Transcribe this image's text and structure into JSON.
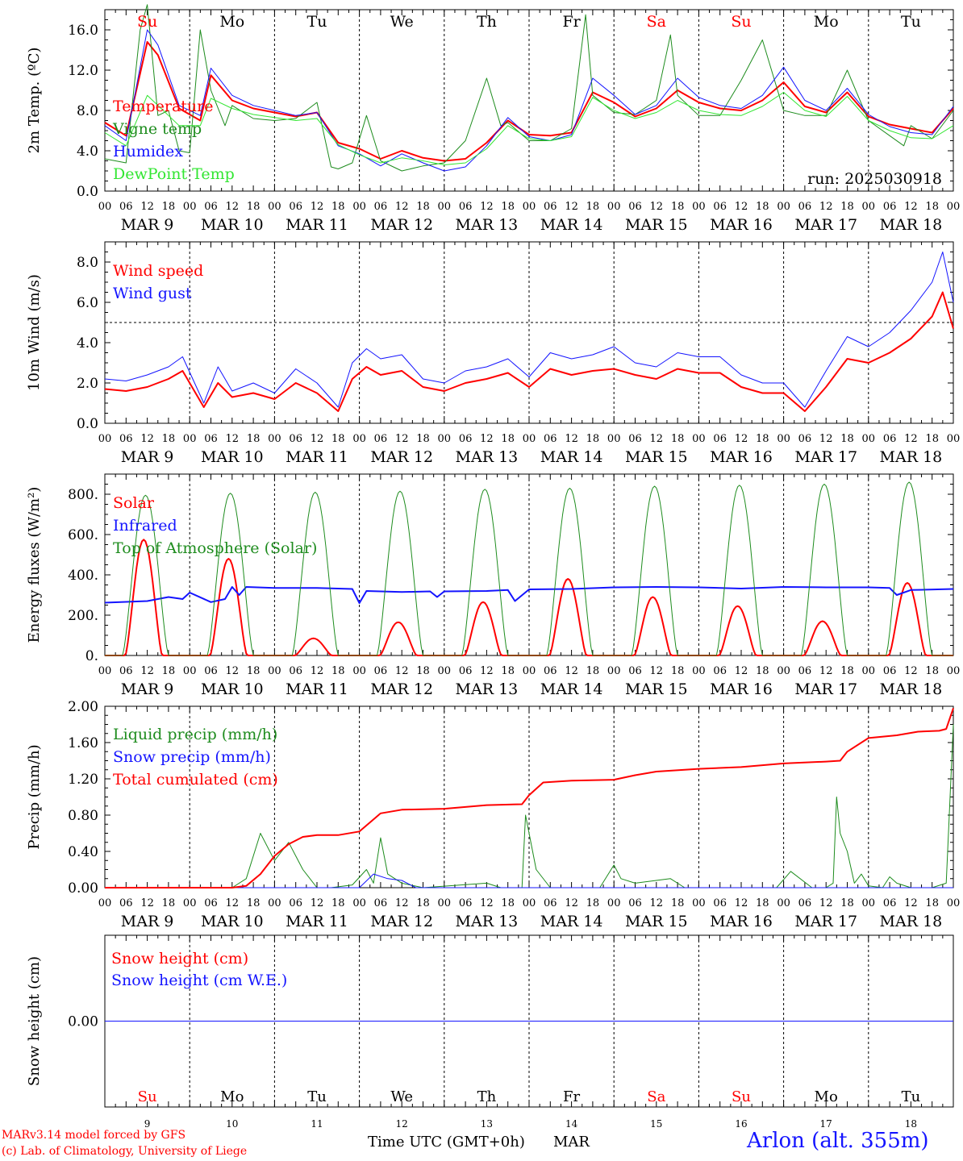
{
  "colors": {
    "red": "#ff0000",
    "dkgreen": "#1e8c1e",
    "blue": "#1414ff",
    "ltgreen": "#32e632",
    "axis": "#000000"
  },
  "days": {
    "names": [
      "Su",
      "Mo",
      "Tu",
      "We",
      "Th",
      "Fr",
      "Sa",
      "Su",
      "Mo",
      "Tu"
    ],
    "name_colors": [
      "#ff0000",
      "#000000",
      "#000000",
      "#000000",
      "#000000",
      "#000000",
      "#ff0000",
      "#ff0000",
      "#000000",
      "#000000"
    ],
    "dates": [
      "MAR  9",
      "MAR 10",
      "MAR 11",
      "MAR 12",
      "MAR 13",
      "MAR 14",
      "MAR 15",
      "MAR 16",
      "MAR 17",
      "MAR 18"
    ],
    "numbers": [
      "9",
      "10",
      "11",
      "12",
      "13",
      "14",
      "15",
      "16",
      "17",
      "18"
    ],
    "hour_ticks": [
      "00",
      "06",
      "12",
      "18"
    ],
    "last_tick": "00"
  },
  "footer": {
    "credit1": "MARv3.14 model forced by GFS",
    "credit2": "(c) Lab. of Climatology, University of Liege",
    "xlabel": "Time UTC (GMT+0h)",
    "month": "MAR",
    "station": "Arlon (alt. 355m)"
  },
  "chart_data": [
    {
      "type": "line",
      "ylabel": "2m Temp. (ºC)",
      "ylim": [
        0,
        18
      ],
      "yticks": [
        "0.0",
        "4.0",
        "8.0",
        "12.0",
        "16.0"
      ],
      "annotation": "run: 2025030918",
      "x_unit": "hours since MAR 9 00 UTC",
      "series": [
        {
          "name": "Temperature",
          "color": "#ff0000",
          "width": 2,
          "x": [
            0,
            6,
            12,
            15,
            21,
            27,
            30,
            36,
            42,
            48,
            54,
            60,
            66,
            72,
            78,
            84,
            90,
            96,
            102,
            108,
            114,
            120,
            126,
            132,
            138,
            144,
            150,
            156,
            162,
            168,
            174,
            180,
            186,
            192,
            198,
            204,
            210,
            216,
            222,
            228,
            234,
            240
          ],
          "values": [
            6.8,
            5.5,
            14.8,
            13.5,
            8.2,
            7.0,
            11.5,
            9.0,
            8.2,
            7.8,
            7.4,
            7.8,
            4.8,
            4.2,
            3.2,
            4.0,
            3.3,
            3.0,
            3.2,
            4.8,
            7.0,
            5.6,
            5.5,
            5.8,
            9.8,
            8.8,
            7.4,
            8.2,
            10.0,
            8.8,
            8.2,
            8.0,
            9.0,
            10.8,
            8.4,
            7.8,
            9.8,
            7.4,
            6.6,
            6.2,
            5.8,
            8.2
          ]
        },
        {
          "name": "Vigne temp",
          "color": "#1e8c1e",
          "width": 1,
          "x": [
            0,
            6,
            10,
            12,
            15,
            18,
            21,
            24,
            27,
            30,
            34,
            36,
            42,
            48,
            54,
            60,
            64,
            66,
            70,
            74,
            78,
            84,
            90,
            96,
            102,
            108,
            112,
            114,
            120,
            126,
            132,
            136,
            138,
            144,
            150,
            156,
            160,
            162,
            168,
            174,
            180,
            186,
            192,
            198,
            204,
            210,
            216,
            222,
            226,
            228,
            234,
            240
          ],
          "values": [
            3.2,
            2.8,
            16.0,
            18.5,
            7.5,
            8.0,
            4.0,
            3.8,
            16.0,
            10.0,
            6.5,
            8.5,
            7.2,
            7.0,
            7.2,
            8.8,
            2.4,
            2.2,
            2.8,
            7.5,
            3.0,
            2.0,
            2.5,
            2.8,
            5.0,
            11.2,
            6.5,
            6.8,
            5.0,
            5.0,
            6.2,
            17.5,
            9.5,
            7.8,
            7.6,
            9.0,
            15.5,
            9.5,
            7.5,
            7.5,
            11.0,
            15.0,
            8.0,
            7.5,
            7.5,
            12.0,
            7.0,
            5.5,
            4.5,
            6.5,
            5.2,
            8.0
          ]
        },
        {
          "name": "Humidex",
          "color": "#1414ff",
          "width": 1,
          "x": [
            0,
            6,
            12,
            15,
            21,
            27,
            30,
            36,
            42,
            48,
            54,
            60,
            66,
            72,
            78,
            84,
            90,
            96,
            102,
            108,
            114,
            120,
            126,
            132,
            138,
            144,
            150,
            156,
            162,
            168,
            174,
            180,
            186,
            192,
            198,
            204,
            210,
            216,
            222,
            228,
            234,
            240
          ],
          "values": [
            6.5,
            5.0,
            16.0,
            14.5,
            8.5,
            7.5,
            12.2,
            9.5,
            8.5,
            8.0,
            7.5,
            7.8,
            4.5,
            3.7,
            2.5,
            3.7,
            2.8,
            2.0,
            2.4,
            4.5,
            7.3,
            5.4,
            5.0,
            5.6,
            11.2,
            9.5,
            7.6,
            8.5,
            11.2,
            9.3,
            8.5,
            8.2,
            9.5,
            12.3,
            9.0,
            8.0,
            10.2,
            7.6,
            6.4,
            5.8,
            5.6,
            8.4
          ]
        },
        {
          "name": "DewPoint Temp",
          "color": "#32e632",
          "width": 1,
          "x": [
            0,
            6,
            12,
            15,
            21,
            27,
            30,
            36,
            42,
            48,
            54,
            60,
            66,
            72,
            78,
            84,
            90,
            96,
            102,
            108,
            114,
            120,
            126,
            132,
            138,
            144,
            150,
            156,
            162,
            168,
            174,
            180,
            186,
            192,
            198,
            204,
            210,
            216,
            222,
            228,
            234,
            240
          ],
          "values": [
            5.8,
            4.5,
            9.5,
            8.5,
            6.5,
            6.5,
            9.2,
            8.2,
            7.6,
            7.3,
            7.0,
            7.2,
            4.6,
            3.6,
            2.8,
            3.3,
            3.0,
            2.6,
            2.8,
            4.2,
            6.5,
            5.2,
            5.0,
            5.4,
            9.3,
            8.0,
            7.2,
            7.8,
            9.0,
            8.0,
            7.6,
            7.5,
            8.4,
            9.8,
            8.0,
            7.4,
            9.4,
            7.0,
            6.0,
            5.3,
            5.2,
            6.5
          ]
        }
      ]
    },
    {
      "type": "line",
      "ylabel": "10m Wind (m/s)",
      "ylim": [
        0,
        9
      ],
      "yticks": [
        "0.0",
        "2.0",
        "4.0",
        "6.0",
        "8.0"
      ],
      "ref_line": 5,
      "x_unit": "hours since MAR 9 00 UTC",
      "series": [
        {
          "name": "Wind speed",
          "color": "#ff0000",
          "width": 2,
          "x": [
            0,
            6,
            12,
            18,
            22,
            28,
            32,
            36,
            42,
            48,
            54,
            60,
            66,
            70,
            74,
            78,
            84,
            90,
            96,
            102,
            108,
            114,
            120,
            126,
            132,
            138,
            144,
            150,
            156,
            162,
            168,
            174,
            180,
            186,
            192,
            198,
            204,
            210,
            216,
            222,
            228,
            234,
            237,
            240
          ],
          "values": [
            1.7,
            1.6,
            1.8,
            2.2,
            2.6,
            0.8,
            2.0,
            1.3,
            1.5,
            1.2,
            2.0,
            1.5,
            0.6,
            2.2,
            2.8,
            2.4,
            2.6,
            1.8,
            1.6,
            2.0,
            2.2,
            2.5,
            1.8,
            2.7,
            2.4,
            2.6,
            2.7,
            2.4,
            2.2,
            2.7,
            2.5,
            2.5,
            1.8,
            1.5,
            1.5,
            0.6,
            1.8,
            3.2,
            3.0,
            3.5,
            4.2,
            5.3,
            6.5,
            4.7
          ]
        },
        {
          "name": "Wind gust",
          "color": "#1414ff",
          "width": 1,
          "x": [
            0,
            6,
            12,
            18,
            22,
            28,
            32,
            36,
            42,
            48,
            54,
            60,
            66,
            70,
            74,
            78,
            84,
            90,
            96,
            102,
            108,
            114,
            120,
            126,
            132,
            138,
            144,
            150,
            156,
            162,
            168,
            174,
            180,
            186,
            192,
            198,
            204,
            210,
            216,
            222,
            228,
            234,
            237,
            240
          ],
          "values": [
            2.2,
            2.1,
            2.4,
            2.8,
            3.3,
            1.0,
            2.8,
            1.6,
            2.0,
            1.5,
            2.7,
            2.0,
            0.8,
            3.0,
            3.7,
            3.2,
            3.4,
            2.2,
            2.0,
            2.6,
            2.8,
            3.2,
            2.3,
            3.5,
            3.2,
            3.4,
            3.8,
            3.0,
            2.8,
            3.5,
            3.3,
            3.3,
            2.4,
            2.0,
            2.0,
            0.8,
            2.6,
            4.3,
            3.8,
            4.5,
            5.6,
            7.0,
            8.5,
            6.0
          ]
        }
      ]
    },
    {
      "type": "line",
      "ylabel": "Energy fluxes (W/m²)",
      "ylim": [
        0,
        900
      ],
      "yticks": [
        "0.",
        "200.",
        "400.",
        "600.",
        "800."
      ],
      "x_unit": "hours since MAR 9 00 UTC",
      "series": [
        {
          "name": "Solar",
          "color": "#ff0000",
          "width": 2,
          "peaks_hour": [
            11,
            35,
            59,
            83,
            107,
            131,
            155,
            179,
            203,
            227
          ],
          "peaks": [
            575,
            480,
            85,
            165,
            265,
            380,
            290,
            245,
            170,
            360
          ]
        },
        {
          "name": "Infrared",
          "color": "#1414ff",
          "width": 2,
          "x": [
            0,
            12,
            18,
            22,
            24,
            30,
            34,
            36,
            38,
            40,
            48,
            60,
            70,
            72,
            74,
            84,
            92,
            94,
            96,
            108,
            114,
            116,
            120,
            132,
            144,
            156,
            168,
            180,
            192,
            204,
            216,
            222,
            224,
            228,
            240
          ],
          "values": [
            262,
            270,
            290,
            280,
            312,
            265,
            280,
            340,
            300,
            340,
            335,
            335,
            330,
            260,
            320,
            315,
            318,
            290,
            318,
            320,
            325,
            270,
            328,
            330,
            338,
            340,
            338,
            332,
            340,
            338,
            338,
            335,
            300,
            325,
            330
          ]
        },
        {
          "name": "Top of Atmosphere (Solar)",
          "color": "#1e8c1e",
          "width": 1,
          "peaks_hour": [
            11.5,
            35.5,
            59.5,
            83.5,
            107.5,
            131.5,
            155.5,
            179.5,
            203.5,
            227.5
          ],
          "peaks": [
            795,
            805,
            810,
            815,
            825,
            830,
            840,
            845,
            850,
            860
          ]
        }
      ]
    },
    {
      "type": "line",
      "ylabel": "Precip (mm/h)",
      "ylim": [
        0,
        2
      ],
      "yticks": [
        "0.00",
        "0.40",
        "0.80",
        "1.20",
        "1.60",
        "2.00"
      ],
      "x_unit": "hours since MAR 9 00 UTC",
      "series": [
        {
          "name": "Liquid precip (mm/h)",
          "color": "#1e8c1e",
          "width": 1,
          "x": [
            0,
            36,
            40,
            44,
            48,
            52,
            54,
            56,
            60,
            64,
            70,
            74,
            76,
            78,
            80,
            84,
            90,
            108,
            112,
            118,
            119,
            120,
            122,
            126,
            140,
            144,
            146,
            150,
            160,
            164,
            168,
            190,
            194,
            200,
            204,
            206,
            207,
            208,
            210,
            212,
            214,
            216,
            220,
            222,
            224,
            228,
            234,
            238,
            240
          ],
          "values": [
            0,
            0,
            0.1,
            0.6,
            0.3,
            0.5,
            0.35,
            0.2,
            0,
            0,
            0.03,
            0.2,
            0.05,
            0.55,
            0.15,
            0.05,
            0,
            0.05,
            0,
            0,
            0.8,
            0.6,
            0.2,
            0,
            0,
            0.25,
            0.1,
            0.05,
            0.1,
            0,
            0,
            0,
            0.18,
            0,
            0,
            0.05,
            1.0,
            0.6,
            0.4,
            0.05,
            0.15,
            0.02,
            0,
            0.12,
            0.05,
            0,
            0,
            0.05,
            1.8
          ]
        },
        {
          "name": "Snow precip (mm/h)",
          "color": "#1414ff",
          "width": 1,
          "x": [
            0,
            72,
            76,
            80,
            84,
            88,
            240
          ],
          "values": [
            0,
            0,
            0.15,
            0.1,
            0.08,
            0,
            0
          ]
        },
        {
          "name": "Total cumulated (cm)",
          "color": "#ff0000",
          "width": 2,
          "x": [
            0,
            36,
            40,
            44,
            48,
            52,
            56,
            60,
            66,
            72,
            78,
            84,
            96,
            108,
            118,
            120,
            124,
            132,
            144,
            150,
            156,
            168,
            180,
            192,
            204,
            208,
            210,
            216,
            224,
            230,
            236,
            238,
            240
          ],
          "values": [
            0,
            0,
            0.02,
            0.15,
            0.35,
            0.48,
            0.56,
            0.58,
            0.58,
            0.62,
            0.82,
            0.86,
            0.87,
            0.91,
            0.92,
            1.02,
            1.16,
            1.18,
            1.19,
            1.24,
            1.28,
            1.31,
            1.33,
            1.37,
            1.39,
            1.4,
            1.5,
            1.65,
            1.68,
            1.72,
            1.73,
            1.75,
            1.98
          ]
        }
      ]
    },
    {
      "type": "line",
      "ylabel": "Snow height (cm)",
      "ylim": [
        -1,
        1
      ],
      "yticks": [
        "0.00"
      ],
      "x_unit": "hours since MAR 9 00 UTC",
      "series": [
        {
          "name": "Snow height (cm)",
          "color": "#ff0000",
          "width": 1,
          "x": [
            0,
            240
          ],
          "values": [
            0,
            0
          ]
        },
        {
          "name": "Snow height (cm W.E.)",
          "color": "#1414ff",
          "width": 1,
          "x": [
            0,
            240
          ],
          "values": [
            0,
            0
          ]
        }
      ]
    }
  ]
}
